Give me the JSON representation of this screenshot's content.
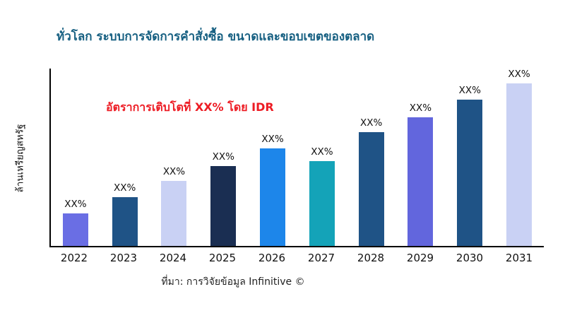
{
  "title": "ทั่วโลก ระบบการจัดการคำสั่งซื้อ ขนาดและขอบเขตของตลาด",
  "annotation": "อัตราการเติบโตที่ XX% โดย IDR",
  "source": "ที่มา: การวิจัยข้อมูล Infinitive ©",
  "colors": {
    "title": "#176082",
    "annotation": "#ed1c24",
    "axis": "#000000"
  },
  "chart_data": {
    "type": "bar",
    "title": "ทั่วโลก ระบบการจัดการคำสั่งซื้อ ขนาดและขอบเขตของตลาด",
    "xlabel": "",
    "ylabel": "ล้านเหรียญสหรัฐ",
    "categories": [
      "2022",
      "2023",
      "2024",
      "2025",
      "2026",
      "2027",
      "2028",
      "2029",
      "2030",
      "2031"
    ],
    "values": [
      20,
      30,
      40,
      49,
      60,
      52,
      70,
      79,
      90,
      100
    ],
    "value_unit": "relative height %, actual values masked as XX%",
    "bar_labels": [
      "XX%",
      "XX%",
      "XX%",
      "XX%",
      "XX%",
      "XX%",
      "XX%",
      "XX%",
      "XX%",
      "XX%"
    ],
    "bar_colors": [
      "#6a6ee4",
      "#1f5386",
      "#c9d1f4",
      "#1a2e52",
      "#1d86ea",
      "#14a3b8",
      "#1f5386",
      "#6266dd",
      "#1f5386",
      "#c9d1f4"
    ],
    "ylim": [
      0,
      110
    ],
    "grid": false,
    "legend_position": "none",
    "annotation_text": "อัตราการเติบโตที่ XX% โดย IDR",
    "source_text": "ที่มา: การวิจัยข้อมูล Infinitive ©"
  }
}
